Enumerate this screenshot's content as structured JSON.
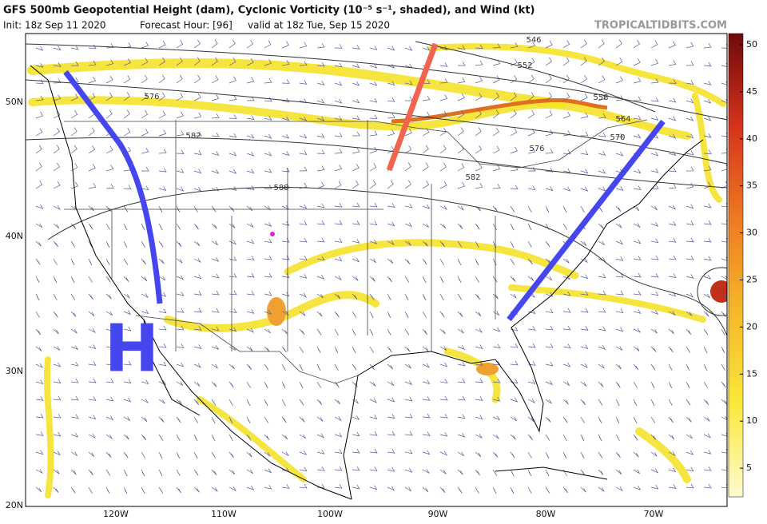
{
  "header": {
    "title": "GFS 500mb Geopotential Height (dam), Cyclonic Vorticity (10⁻⁵ s⁻¹, shaded), and Wind (kt)",
    "init": "Init: 18z Sep 11 2020",
    "forecast_hour": "Forecast Hour: [96]",
    "valid": "valid at 18z Tue, Sep 15 2020",
    "source": "TROPICALTIDBITS.COM"
  },
  "map": {
    "lat_labels": [
      "50N",
      "40N",
      "30N",
      "20N"
    ],
    "lon_labels": [
      "120W",
      "110W",
      "100W",
      "90W",
      "80W",
      "70W"
    ],
    "contour_labels": [
      "576",
      "582",
      "588",
      "546",
      "552",
      "558",
      "564",
      "570",
      "576",
      "582"
    ],
    "annotation": "H"
  },
  "colorbar": {
    "ticks": [
      5,
      10,
      15,
      20,
      25,
      30,
      35,
      40,
      45,
      50
    ]
  }
}
